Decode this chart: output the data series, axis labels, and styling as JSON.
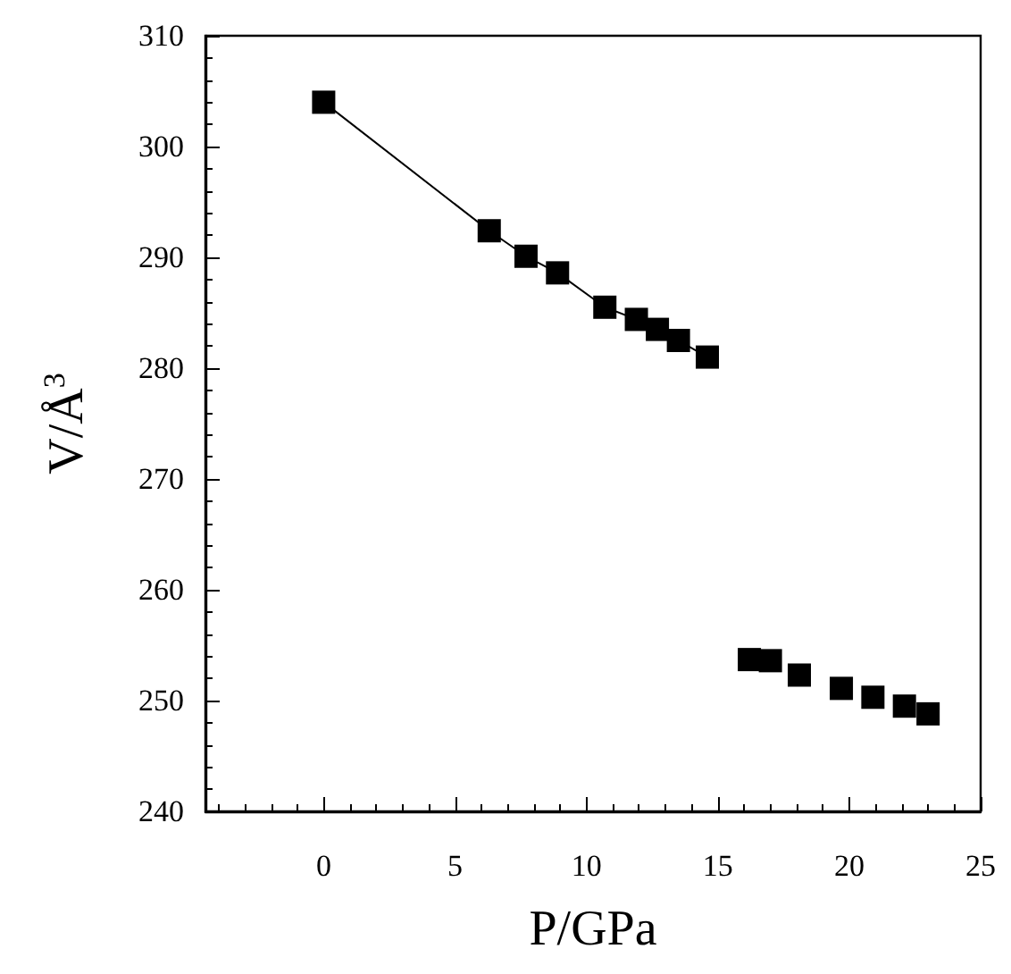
{
  "chart_data": {
    "type": "scatter",
    "xlabel": "P/GPa",
    "ylabel": "V/Å$^{3}$",
    "marker": "square",
    "grid": false,
    "xlim": [
      -4.5,
      25
    ],
    "ylim": [
      240,
      310
    ],
    "xticks": [
      0,
      5,
      10,
      15,
      20,
      25,
      {
        "value": -4,
        "label": null
      },
      {
        "value": -3,
        "label": null
      },
      {
        "value": -2,
        "label": null
      },
      {
        "value": -1,
        "label": null
      },
      {
        "value": 1,
        "label": null
      },
      {
        "value": 2,
        "label": null
      },
      {
        "value": 3,
        "label": null
      },
      {
        "value": 4,
        "label": null
      },
      {
        "value": 6,
        "label": null
      },
      {
        "value": 7,
        "label": null
      },
      {
        "value": 8,
        "label": null
      },
      {
        "value": 9,
        "label": null
      },
      {
        "value": 11,
        "label": null
      },
      {
        "value": 12,
        "label": null
      },
      {
        "value": 13,
        "label": null
      },
      {
        "value": 14,
        "label": null
      },
      {
        "value": 16,
        "label": null
      },
      {
        "value": 17,
        "label": null
      },
      {
        "value": 18,
        "label": null
      },
      {
        "value": 19,
        "label": null
      },
      {
        "value": 21,
        "label": null
      },
      {
        "value": 22,
        "label": null
      },
      {
        "value": 23,
        "label": null
      },
      {
        "value": 24,
        "label": null
      }
    ],
    "yticks": [
      240,
      250,
      260,
      270,
      280,
      290,
      300,
      310,
      {
        "value": 242,
        "label": null
      },
      {
        "value": 244,
        "label": null
      },
      {
        "value": 246,
        "label": null
      },
      {
        "value": 248,
        "label": null
      },
      {
        "value": 252,
        "label": null
      },
      {
        "value": 254,
        "label": null
      },
      {
        "value": 256,
        "label": null
      },
      {
        "value": 258,
        "label": null
      },
      {
        "value": 262,
        "label": null
      },
      {
        "value": 264,
        "label": null
      },
      {
        "value": 266,
        "label": null
      },
      {
        "value": 268,
        "label": null
      },
      {
        "value": 272,
        "label": null
      },
      {
        "value": 274,
        "label": null
      },
      {
        "value": 276,
        "label": null
      },
      {
        "value": 278,
        "label": null
      },
      {
        "value": 282,
        "label": null
      },
      {
        "value": 284,
        "label": null
      },
      {
        "value": 286,
        "label": null
      },
      {
        "value": 288,
        "label": null
      },
      {
        "value": 292,
        "label": null
      },
      {
        "value": 294,
        "label": null
      },
      {
        "value": 296,
        "label": null
      },
      {
        "value": 298,
        "label": null
      },
      {
        "value": 302,
        "label": null
      },
      {
        "value": 304,
        "label": null
      },
      {
        "value": 306,
        "label": null
      },
      {
        "value": 308,
        "label": null
      }
    ],
    "series": [
      {
        "type": "line",
        "color": "#000000",
        "x": [
          0,
          6.3,
          7.7,
          8.9,
          10.7,
          11.9,
          12.7,
          13.5,
          14.6
        ],
        "values": [
          304.0,
          292.4,
          290.1,
          288.6,
          285.5,
          284.4,
          283.5,
          282.5,
          281.0
        ]
      },
      {
        "color": "#000000",
        "x": [
          16.2,
          17.0,
          18.1,
          19.7,
          20.9,
          22.1,
          23.0
        ],
        "values": [
          253.7,
          253.6,
          252.3,
          251.1,
          250.3,
          249.5,
          248.8
        ]
      }
    ]
  }
}
